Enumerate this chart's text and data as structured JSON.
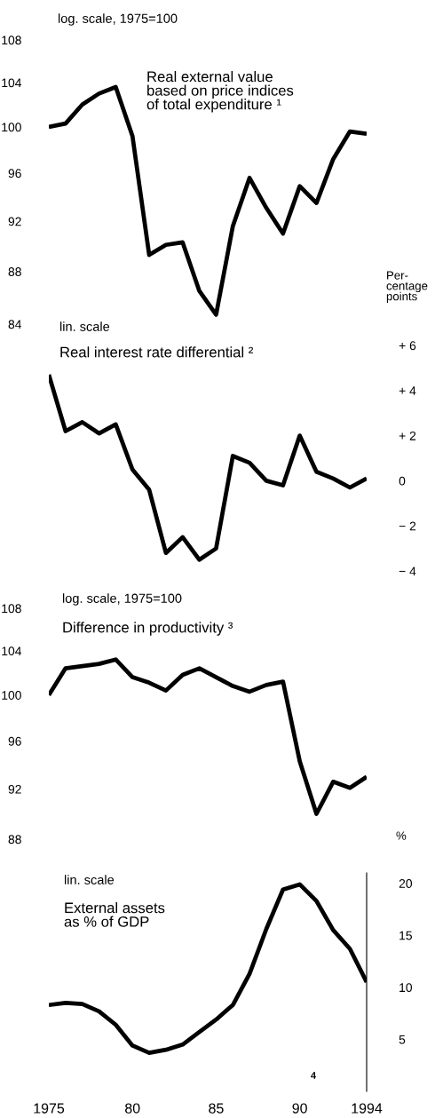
{
  "chart_data": [
    {
      "type": "line",
      "subtitle": "log. scale, 1975=100",
      "title": "Real external value\nbased on price indices\nof total expenditure ¹",
      "log": "y",
      "tick_labels": "y",
      "x": [
        1975,
        1976,
        1977,
        1978,
        1979,
        1980,
        1981,
        1982,
        1983,
        1984,
        1985,
        1986,
        1987,
        1988,
        1989,
        1990,
        1991,
        1992,
        1993,
        1994
      ],
      "xlim": [
        1975,
        1994
      ],
      "ylim": [
        84,
        108
      ],
      "yticks": [
        84,
        88,
        92,
        96,
        100,
        104,
        108
      ],
      "series": [
        {
          "color": "#000000",
          "values": [
            100,
            100.3,
            102,
            103,
            103.6,
            99.2,
            89.3,
            90.1,
            90.3,
            86.5,
            84.7,
            91.6,
            95.6,
            93.1,
            91.0,
            94.9,
            93.5,
            97.2,
            99.6,
            99.4
          ]
        }
      ]
    },
    {
      "type": "line",
      "subtitle": "lin. scale",
      "title": "Real interest rate differential ²",
      "y2label": "Per-\ncentage\npoints",
      "tick_labels": "y",
      "x": [
        1975,
        1976,
        1977,
        1978,
        1979,
        1980,
        1981,
        1982,
        1983,
        1984,
        1985,
        1986,
        1987,
        1988,
        1989,
        1990,
        1991,
        1992,
        1993,
        1994
      ],
      "xlim": [
        1975,
        1994
      ],
      "y2lim": [
        -4,
        6
      ],
      "y2ticks": [
        {
          "value": -4,
          "label": "− 4"
        },
        {
          "value": -2,
          "label": "− 2"
        },
        0,
        {
          "value": 2,
          "label": "+ 2"
        },
        {
          "value": 4,
          "label": "+ 4"
        },
        {
          "value": 6,
          "label": "+ 6"
        }
      ],
      "series": [
        {
          "color": "#000000",
          "axis": "y2",
          "values": [
            4.7,
            2.2,
            2.6,
            2.1,
            2.5,
            0.5,
            -0.4,
            -3.2,
            -2.5,
            -3.5,
            -3.0,
            1.1,
            0.8,
            0.0,
            -0.2,
            2.0,
            0.4,
            0.1,
            -0.3,
            0.1
          ]
        }
      ]
    },
    {
      "type": "line",
      "subtitle": "log. scale, 1975=100",
      "title": "Difference in productivity ³",
      "log": "y",
      "tick_labels": "y",
      "x": [
        1975,
        1976,
        1977,
        1978,
        1979,
        1980,
        1981,
        1982,
        1983,
        1984,
        1985,
        1986,
        1987,
        1988,
        1989,
        1990,
        1991,
        1992,
        1993,
        1994
      ],
      "xlim": [
        1975,
        1994
      ],
      "ylim": [
        88,
        108
      ],
      "yticks": [
        88,
        92,
        96,
        100,
        104,
        108
      ],
      "series": [
        {
          "color": "#000000",
          "values": [
            100,
            102.4,
            102.6,
            102.8,
            103.2,
            101.6,
            101.1,
            100.4,
            101.8,
            102.4,
            101.6,
            100.8,
            100.3,
            100.9,
            101.2,
            94.3,
            90.0,
            92.6,
            92.1,
            93.0
          ]
        }
      ]
    },
    {
      "type": "line",
      "subtitle": "lin. scale",
      "title": "External assets\nas % of GDP",
      "y2label": "%",
      "annotations": [
        "4"
      ],
      "x": [
        1975,
        1976,
        1977,
        1978,
        1979,
        1980,
        1981,
        1982,
        1983,
        1984,
        1985,
        1986,
        1987,
        1988,
        1989,
        1990,
        1991,
        1992,
        1993,
        1994
      ],
      "xlim": [
        1975,
        1994
      ],
      "xticks": [
        1975,
        {
          "value": 1980,
          "label": "80"
        },
        {
          "value": 1985,
          "label": "85"
        },
        {
          "value": 1990,
          "label": "90"
        },
        1994
      ],
      "y2lim": [
        0,
        21
      ],
      "y2ticks": [
        5,
        10,
        15,
        20
      ],
      "series": [
        {
          "color": "#000000",
          "axis": "y2",
          "values": [
            8.3,
            8.5,
            8.4,
            7.7,
            6.4,
            4.4,
            3.7,
            4.0,
            4.5,
            5.7,
            6.9,
            8.3,
            11.3,
            15.6,
            19.4,
            19.9,
            18.3,
            15.5,
            13.7,
            10.5
          ]
        }
      ]
    }
  ]
}
